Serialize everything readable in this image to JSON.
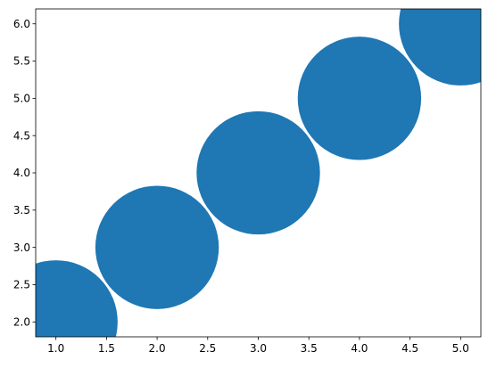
{
  "chart_data": {
    "type": "scatter",
    "title": "",
    "xlabel": "",
    "ylabel": "",
    "xlim": [
      0.8,
      5.2
    ],
    "ylim": [
      1.8,
      6.2
    ],
    "grid": false,
    "x_ticks": [
      1.0,
      1.5,
      2.0,
      2.5,
      3.0,
      3.5,
      4.0,
      4.5,
      5.0
    ],
    "x_tick_labels": [
      "1.0",
      "1.5",
      "2.0",
      "2.5",
      "3.0",
      "3.5",
      "4.0",
      "4.5",
      "5.0"
    ],
    "y_ticks": [
      2.0,
      2.5,
      3.0,
      3.5,
      4.0,
      4.5,
      5.0,
      5.5,
      6.0
    ],
    "y_tick_labels": [
      "2.0",
      "2.5",
      "3.0",
      "3.5",
      "4.0",
      "4.5",
      "5.0",
      "5.5",
      "6.0"
    ],
    "series": [
      {
        "color": "#1f77b4",
        "marker_radius_x_units": 0.61,
        "points": [
          {
            "x": 1,
            "y": 2
          },
          {
            "x": 2,
            "y": 3
          },
          {
            "x": 3,
            "y": 4
          },
          {
            "x": 4,
            "y": 5
          },
          {
            "x": 5,
            "y": 6
          }
        ]
      }
    ]
  }
}
